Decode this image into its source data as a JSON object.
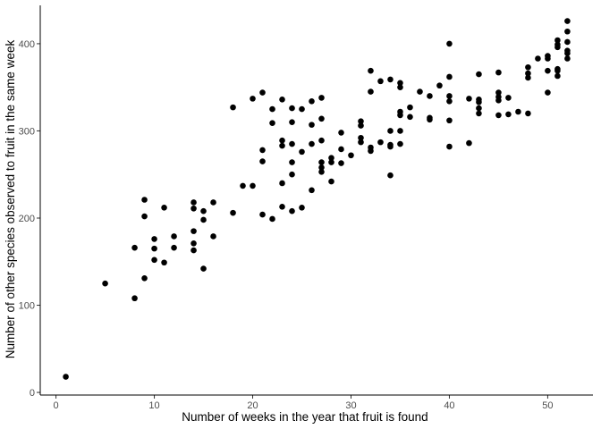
{
  "chart_data": {
    "type": "scatter",
    "title": "",
    "xlabel": "Number of weeks in the year that fruit is found",
    "ylabel": "Number of other species observed to fruit in the same week",
    "xlim": [
      -1.6,
      54.6
    ],
    "ylim": [
      -3,
      444
    ],
    "x_ticks": [
      0,
      10,
      20,
      30,
      40,
      50
    ],
    "y_ticks": [
      0,
      100,
      200,
      300,
      400
    ],
    "grid": false,
    "point_color": "#000000",
    "axis_color": "#000000",
    "points": [
      [
        1,
        18
      ],
      [
        5,
        125
      ],
      [
        8,
        108
      ],
      [
        8,
        166
      ],
      [
        9,
        131
      ],
      [
        9,
        202
      ],
      [
        9,
        221
      ],
      [
        10,
        152
      ],
      [
        10,
        165
      ],
      [
        10,
        176
      ],
      [
        11,
        149
      ],
      [
        11,
        212
      ],
      [
        12,
        166
      ],
      [
        12,
        179
      ],
      [
        14,
        163
      ],
      [
        14,
        171
      ],
      [
        14,
        185
      ],
      [
        14,
        211
      ],
      [
        14,
        218
      ],
      [
        15,
        142
      ],
      [
        15,
        198
      ],
      [
        15,
        208
      ],
      [
        16,
        179
      ],
      [
        16,
        218
      ],
      [
        18,
        206
      ],
      [
        18,
        327
      ],
      [
        19,
        237
      ],
      [
        20,
        237
      ],
      [
        20,
        337
      ],
      [
        21,
        204
      ],
      [
        21,
        265
      ],
      [
        21,
        278
      ],
      [
        21,
        344
      ],
      [
        22,
        199
      ],
      [
        22,
        309
      ],
      [
        22,
        325
      ],
      [
        23,
        213
      ],
      [
        23,
        240
      ],
      [
        23,
        283
      ],
      [
        23,
        289
      ],
      [
        23,
        336
      ],
      [
        24,
        208
      ],
      [
        24,
        250
      ],
      [
        24,
        264
      ],
      [
        24,
        285
      ],
      [
        24,
        310
      ],
      [
        24,
        326
      ],
      [
        25,
        212
      ],
      [
        25,
        276
      ],
      [
        25,
        325
      ],
      [
        26,
        232
      ],
      [
        26,
        285
      ],
      [
        26,
        307
      ],
      [
        26,
        334
      ],
      [
        27,
        253
      ],
      [
        27,
        258
      ],
      [
        27,
        264
      ],
      [
        27,
        289
      ],
      [
        27,
        314
      ],
      [
        27,
        338
      ],
      [
        28,
        242
      ],
      [
        28,
        264
      ],
      [
        28,
        269
      ],
      [
        29,
        263
      ],
      [
        29,
        279
      ],
      [
        29,
        298
      ],
      [
        30,
        272
      ],
      [
        31,
        287
      ],
      [
        31,
        292
      ],
      [
        31,
        306
      ],
      [
        31,
        311
      ],
      [
        32,
        277
      ],
      [
        32,
        281
      ],
      [
        32,
        345
      ],
      [
        32,
        369
      ],
      [
        33,
        287
      ],
      [
        33,
        357
      ],
      [
        34,
        249
      ],
      [
        34,
        282
      ],
      [
        34,
        284
      ],
      [
        34,
        300
      ],
      [
        34,
        359
      ],
      [
        35,
        285
      ],
      [
        35,
        300
      ],
      [
        35,
        318
      ],
      [
        35,
        322
      ],
      [
        35,
        350
      ],
      [
        35,
        355
      ],
      [
        36,
        316
      ],
      [
        36,
        327
      ],
      [
        37,
        345
      ],
      [
        38,
        313
      ],
      [
        38,
        315
      ],
      [
        38,
        340
      ],
      [
        39,
        352
      ],
      [
        40,
        282
      ],
      [
        40,
        312
      ],
      [
        40,
        334
      ],
      [
        40,
        340
      ],
      [
        40,
        362
      ],
      [
        40,
        400
      ],
      [
        42,
        286
      ],
      [
        42,
        337
      ],
      [
        43,
        320
      ],
      [
        43,
        326
      ],
      [
        43,
        333
      ],
      [
        43,
        336
      ],
      [
        43,
        365
      ],
      [
        45,
        318
      ],
      [
        45,
        335
      ],
      [
        45,
        339
      ],
      [
        45,
        344
      ],
      [
        45,
        367
      ],
      [
        46,
        319
      ],
      [
        46,
        338
      ],
      [
        47,
        322
      ],
      [
        48,
        320
      ],
      [
        48,
        361
      ],
      [
        48,
        366
      ],
      [
        48,
        373
      ],
      [
        49,
        383
      ],
      [
        50,
        344
      ],
      [
        50,
        369
      ],
      [
        50,
        383
      ],
      [
        50,
        386
      ],
      [
        51,
        363
      ],
      [
        51,
        369
      ],
      [
        51,
        371
      ],
      [
        51,
        396
      ],
      [
        51,
        399
      ],
      [
        51,
        404
      ],
      [
        52,
        383
      ],
      [
        52,
        389
      ],
      [
        52,
        392
      ],
      [
        52,
        402
      ],
      [
        52,
        414
      ],
      [
        52,
        426
      ]
    ]
  }
}
